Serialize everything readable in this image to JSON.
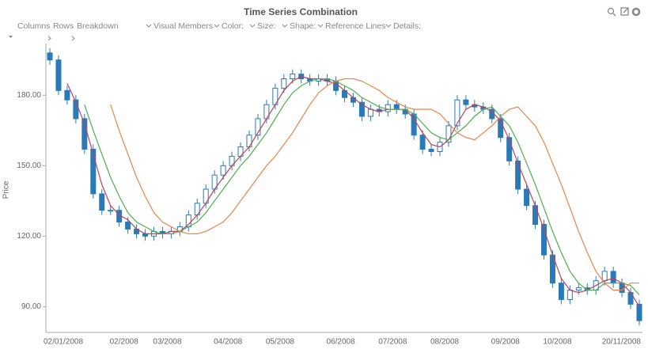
{
  "toolbar": {
    "left": [
      "Columns",
      "Rows",
      "Breakdown"
    ],
    "right": [
      "Visual Members",
      "Color:",
      "Size:",
      "Shape:",
      "Reference Lines",
      "Details:"
    ]
  },
  "chart_data": {
    "type": "candlestick",
    "title": "Time Series Combination",
    "y_label": "Price",
    "categories": [
      "02/01/2008",
      null,
      null,
      null,
      null,
      null,
      null,
      "02/2008",
      null,
      null,
      null,
      null,
      "03/2008",
      null,
      null,
      null,
      null,
      null,
      null,
      "04/2008",
      null,
      null,
      null,
      null,
      null,
      "05/2008",
      null,
      null,
      null,
      null,
      null,
      null,
      "06/2008",
      null,
      null,
      null,
      null,
      null,
      "07/2008",
      null,
      null,
      null,
      null,
      null,
      "08/2008",
      null,
      null,
      null,
      null,
      null,
      null,
      "09/2008",
      null,
      null,
      null,
      null,
      null,
      "10/2008",
      null,
      null,
      null,
      null,
      null,
      null,
      null,
      null,
      null,
      null,
      "20/11/2008"
    ],
    "open": [
      198,
      195,
      182,
      178,
      170,
      157,
      138,
      131,
      131,
      126,
      123,
      121,
      120,
      122,
      121,
      122,
      124,
      129,
      134,
      140,
      146,
      150,
      154,
      158,
      163,
      170,
      176,
      183,
      187,
      189,
      187,
      186,
      187,
      186,
      182,
      179,
      177,
      171,
      174,
      173,
      176,
      174,
      172,
      163,
      157,
      156,
      160,
      167,
      178,
      176,
      175,
      174,
      170,
      162,
      152,
      140,
      133,
      125,
      112,
      100,
      93,
      97,
      98,
      97,
      101,
      105,
      100,
      96,
      91
    ],
    "high": [
      200,
      197,
      184,
      180,
      172,
      159,
      140,
      133,
      133,
      128,
      125,
      123,
      124,
      124,
      124,
      126,
      131,
      136,
      142,
      148,
      152,
      156,
      160,
      165,
      172,
      178,
      185,
      189,
      191,
      191,
      189,
      189,
      189,
      188,
      184,
      181,
      179,
      176,
      176,
      178,
      178,
      176,
      174,
      165,
      159,
      162,
      169,
      180,
      180,
      178,
      177,
      176,
      172,
      164,
      154,
      142,
      135,
      127,
      114,
      102,
      99,
      100,
      100,
      103,
      107,
      107,
      102,
      98,
      93
    ],
    "low": [
      193,
      180,
      176,
      168,
      155,
      136,
      129,
      129,
      124,
      121,
      119,
      118,
      118,
      119,
      119,
      120,
      122,
      127,
      132,
      138,
      144,
      148,
      152,
      156,
      161,
      168,
      174,
      181,
      185,
      185,
      184,
      184,
      184,
      180,
      177,
      175,
      169,
      169,
      171,
      171,
      172,
      170,
      161,
      155,
      154,
      154,
      158,
      165,
      174,
      173,
      172,
      168,
      160,
      150,
      138,
      131,
      123,
      110,
      98,
      91,
      91,
      95,
      95,
      95,
      99,
      98,
      94,
      89,
      82
    ],
    "close": [
      195,
      182,
      178,
      170,
      157,
      138,
      131,
      131,
      126,
      123,
      121,
      120,
      122,
      121,
      122,
      124,
      129,
      134,
      140,
      146,
      150,
      154,
      158,
      163,
      170,
      176,
      183,
      187,
      189,
      187,
      186,
      187,
      186,
      182,
      179,
      177,
      171,
      174,
      173,
      176,
      174,
      172,
      163,
      157,
      156,
      160,
      167,
      178,
      176,
      175,
      174,
      170,
      162,
      152,
      140,
      133,
      125,
      112,
      100,
      93,
      97,
      98,
      97,
      101,
      105,
      100,
      96,
      91,
      84
    ],
    "up_color": "#ffffff",
    "down_color": "#2a7ab8",
    "lines": [
      {
        "color": "#c0405a",
        "values": [
          null,
          null,
          185,
          177,
          168,
          155,
          142,
          133,
          129,
          127,
          123,
          121,
          121,
          121,
          122,
          122,
          125,
          129,
          134,
          140,
          145,
          150,
          154,
          158,
          164,
          170,
          176,
          182,
          186,
          188,
          187,
          187,
          186,
          185,
          182,
          179,
          176,
          174,
          173,
          174,
          174,
          174,
          170,
          164,
          159,
          158,
          161,
          168,
          174,
          176,
          175,
          173,
          169,
          161,
          151,
          142,
          133,
          123,
          112,
          102,
          97,
          96,
          97,
          99,
          101,
          102,
          100,
          96,
          90
        ]
      },
      {
        "color": "#4caf50",
        "values": [
          null,
          null,
          null,
          null,
          176,
          165,
          155,
          145,
          137,
          130,
          126,
          124,
          122,
          121,
          121,
          122,
          124,
          126,
          130,
          135,
          140,
          145,
          150,
          154,
          159,
          164,
          170,
          176,
          181,
          184,
          186,
          187,
          187,
          186,
          184,
          182,
          179,
          177,
          175,
          174,
          174,
          174,
          172,
          168,
          164,
          162,
          161,
          164,
          167,
          171,
          174,
          175,
          171,
          167,
          160,
          151,
          142,
          132,
          122,
          113,
          105,
          100,
          97,
          97,
          100,
          100,
          100,
          99,
          95
        ]
      },
      {
        "color": "#e8844a",
        "values": [
          null,
          null,
          null,
          null,
          null,
          null,
          null,
          176,
          165,
          155,
          145,
          137,
          130,
          126,
          124,
          122,
          121,
          121,
          122,
          124,
          126,
          130,
          135,
          140,
          145,
          150,
          154,
          159,
          164,
          170,
          176,
          181,
          184,
          186,
          187,
          187,
          186,
          184,
          182,
          179,
          177,
          175,
          174,
          174,
          174,
          172,
          168,
          164,
          162,
          161,
          164,
          167,
          171,
          174,
          175,
          171,
          167,
          160,
          151,
          142,
          132,
          122,
          113,
          105,
          100,
          97,
          97,
          100,
          100
        ]
      }
    ],
    "ylim": [
      79,
      202
    ],
    "yticks": [
      {
        "value": 90,
        "label": "90.00"
      },
      {
        "value": 120,
        "label": "120.00"
      },
      {
        "value": 150,
        "label": "150.00"
      },
      {
        "value": 180,
        "label": "180.00"
      }
    ]
  }
}
